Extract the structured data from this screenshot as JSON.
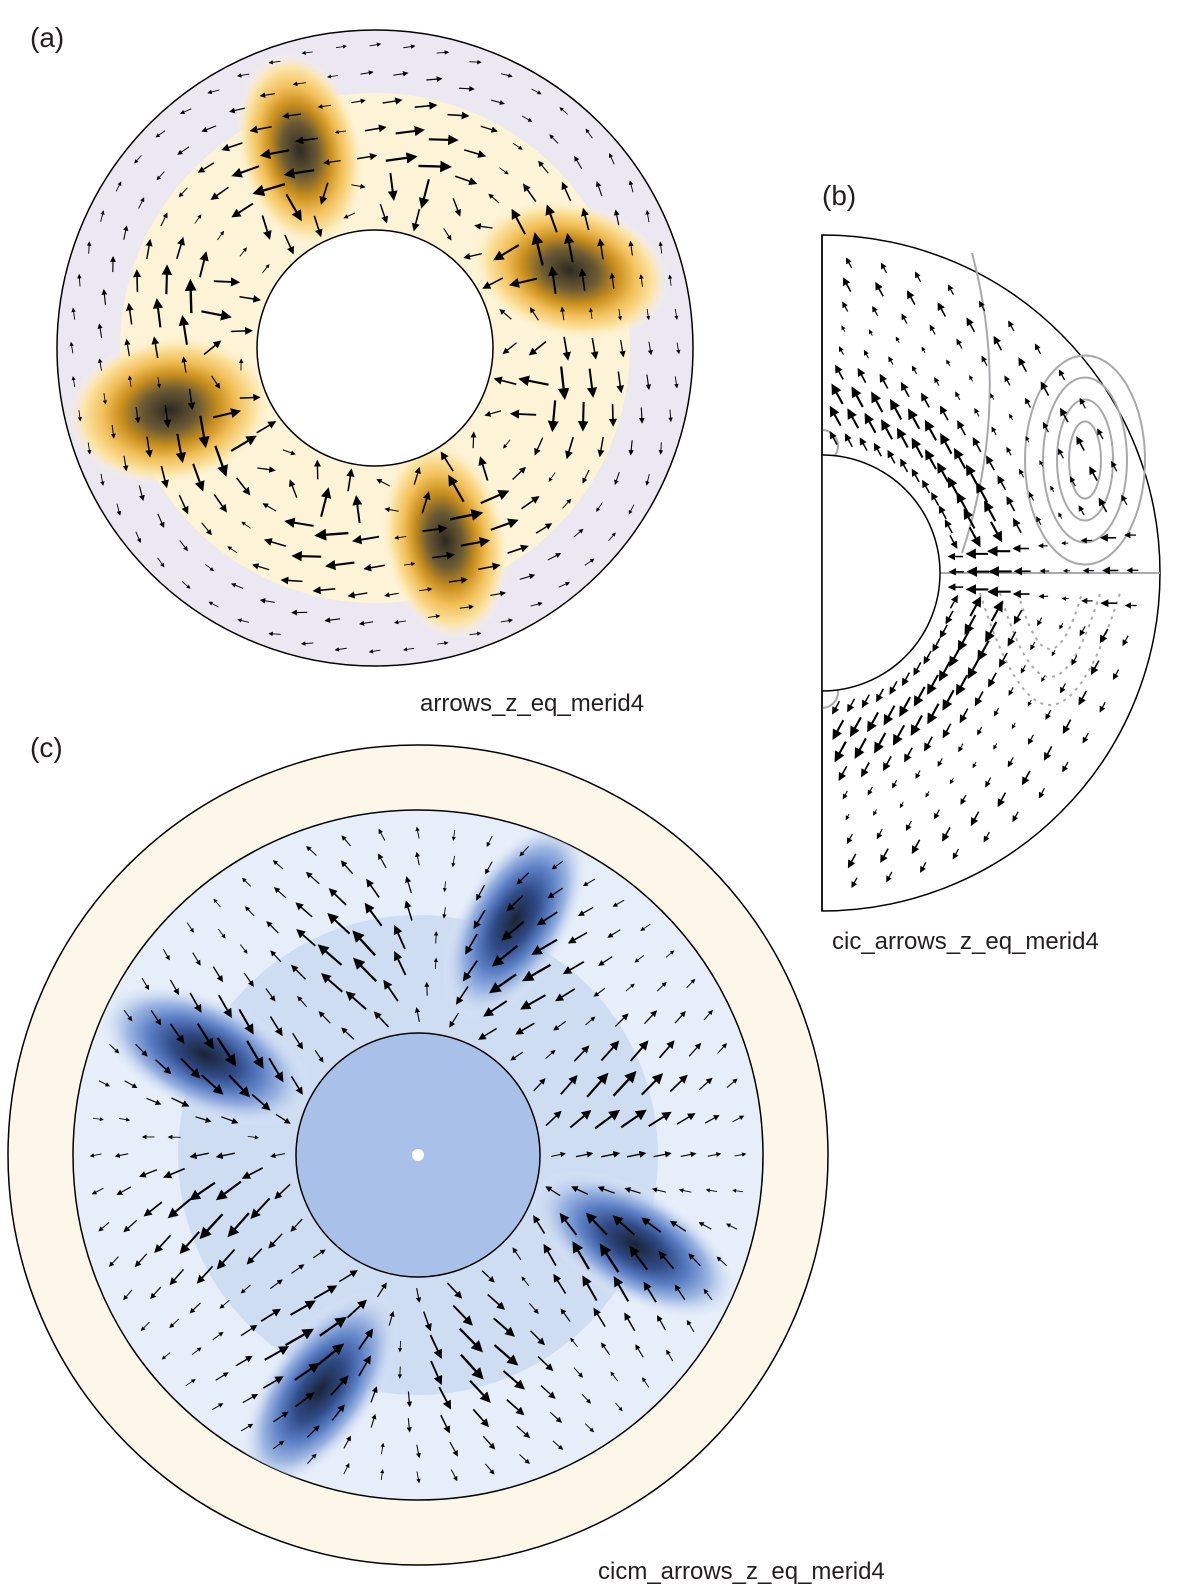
{
  "panels": [
    {
      "label": "(a)",
      "caption": "arrows_z_eq_merid4"
    },
    {
      "label": "(b)",
      "caption": "cic_arrows_z_eq_merid4"
    },
    {
      "label": "(c)",
      "caption": "cicm_arrows_z_eq_merid4"
    }
  ],
  "colors": {
    "panel_a_background": "#ece8f2",
    "panel_a_light": "#fdf3d6",
    "panel_a_mid": "#f2c05a",
    "panel_a_dark": "#c98f1e",
    "panel_a_core": "#2e2a22",
    "panel_b_contour": "#a7a9ac",
    "panel_c_background": "#fdf7ea",
    "panel_c_light": "#e6eef9",
    "panel_c_mid": "#9db6e2",
    "panel_c_dark": "#3f5fa8",
    "panel_c_core": "#1b2335",
    "arrow": "#000000"
  }
}
